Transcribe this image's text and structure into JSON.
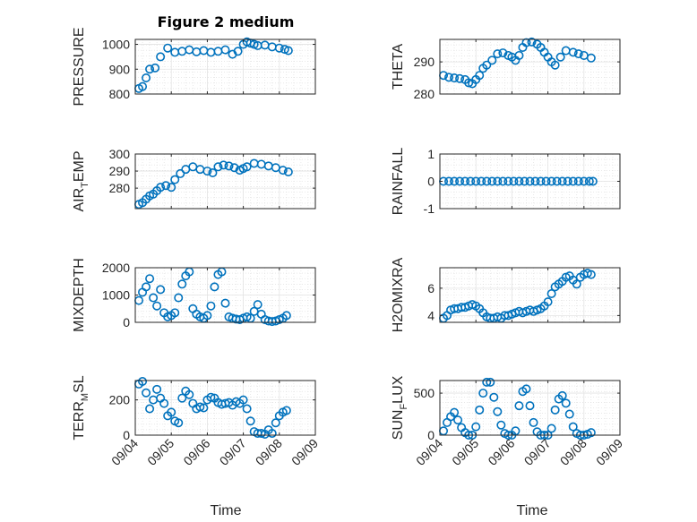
{
  "figure": {
    "title": "Figure 2 medium",
    "marker_color": "#0072BD",
    "axis_color": "#262626",
    "grid_color": "#dcdcdc",
    "x_tick_labels": [
      "09/04",
      "09/05",
      "09/06",
      "09/07",
      "09/08",
      "09/09"
    ],
    "x_label": "Time"
  },
  "chart_data": [
    {
      "type": "scatter",
      "ylabel": "PRESSURE",
      "ylabel_main": "PRESSURE",
      "ylabel_sub": "",
      "ylabel_rest": "",
      "xlim": [
        0,
        5
      ],
      "ylim": [
        800,
        1020
      ],
      "yticks": [
        800,
        900,
        1000
      ],
      "ytick_labels": [
        "800",
        "900",
        "1000"
      ],
      "x": [
        0.1,
        0.2,
        0.3,
        0.4,
        0.55,
        0.7,
        0.9,
        1.1,
        1.3,
        1.5,
        1.7,
        1.9,
        2.1,
        2.3,
        2.5,
        2.7,
        2.85,
        3.0,
        3.1,
        3.2,
        3.3,
        3.4,
        3.6,
        3.8,
        4.0,
        4.15,
        4.25
      ],
      "y": [
        822,
        830,
        865,
        900,
        905,
        950,
        985,
        968,
        972,
        978,
        970,
        975,
        968,
        972,
        978,
        960,
        972,
        1000,
        1010,
        1005,
        1000,
        995,
        997,
        990,
        985,
        980,
        975
      ]
    },
    {
      "type": "scatter",
      "ylabel": "THETA",
      "ylabel_main": "THETA",
      "ylabel_sub": "",
      "ylabel_rest": "",
      "xlim": [
        0,
        5
      ],
      "ylim": [
        280,
        297
      ],
      "yticks": [
        280,
        290
      ],
      "ytick_labels": [
        "280",
        "290"
      ],
      "x": [
        0.1,
        0.25,
        0.4,
        0.55,
        0.7,
        0.8,
        0.9,
        1.0,
        1.1,
        1.2,
        1.3,
        1.45,
        1.6,
        1.75,
        1.9,
        2.0,
        2.1,
        2.2,
        2.3,
        2.4,
        2.55,
        2.7,
        2.8,
        2.9,
        3.0,
        3.1,
        3.2,
        3.35,
        3.5,
        3.7,
        3.85,
        4.0,
        4.2
      ],
      "y": [
        285.8,
        285.2,
        285.0,
        284.8,
        284.5,
        283.5,
        283.2,
        284.5,
        285.8,
        288.0,
        289.0,
        290.5,
        292.5,
        292.8,
        292.0,
        291.5,
        290.5,
        292.0,
        294.5,
        296.0,
        296.2,
        295.5,
        294.5,
        293.0,
        291.5,
        290.0,
        289.0,
        291.5,
        293.5,
        293.0,
        292.5,
        292.0,
        291.2
      ]
    },
    {
      "type": "scatter",
      "ylabel": "AIR_TEMP",
      "ylabel_main": "AIR",
      "ylabel_sub": "T",
      "ylabel_rest": "EMP",
      "xlim": [
        0,
        5
      ],
      "ylim": [
        268,
        300
      ],
      "yticks": [
        280,
        290,
        300
      ],
      "ytick_labels": [
        "280",
        "290",
        "300"
      ],
      "x": [
        0.1,
        0.2,
        0.3,
        0.4,
        0.5,
        0.6,
        0.7,
        0.85,
        1.0,
        1.1,
        1.25,
        1.4,
        1.6,
        1.8,
        2.0,
        2.15,
        2.3,
        2.45,
        2.6,
        2.75,
        2.9,
        3.0,
        3.1,
        3.3,
        3.5,
        3.7,
        3.9,
        4.1,
        4.25
      ],
      "y": [
        270.5,
        271.5,
        273.5,
        275.5,
        276.5,
        278.5,
        280.5,
        281.5,
        280.5,
        285.0,
        288.5,
        291.0,
        292.5,
        291.0,
        290.0,
        289.0,
        292.5,
        293.5,
        293.0,
        292.0,
        290.5,
        291.5,
        292.5,
        294.5,
        294.0,
        293.0,
        292.0,
        290.5,
        289.5
      ]
    },
    {
      "type": "scatter",
      "ylabel": "RAINFALL",
      "ylabel_main": "RAINFALL",
      "ylabel_sub": "",
      "ylabel_rest": "",
      "xlim": [
        0,
        5
      ],
      "ylim": [
        -1,
        1
      ],
      "yticks": [
        -1,
        0,
        1
      ],
      "ytick_labels": [
        "-1",
        "0",
        "1"
      ],
      "x": [
        0.1,
        0.25,
        0.4,
        0.55,
        0.7,
        0.85,
        1.0,
        1.15,
        1.3,
        1.45,
        1.6,
        1.75,
        1.9,
        2.05,
        2.2,
        2.35,
        2.5,
        2.65,
        2.8,
        2.95,
        3.1,
        3.25,
        3.4,
        3.55,
        3.7,
        3.85,
        4.0,
        4.15,
        4.25
      ],
      "y": [
        0,
        0,
        0,
        0,
        0,
        0,
        0,
        0,
        0,
        0,
        0,
        0,
        0,
        0,
        0,
        0,
        0,
        0,
        0,
        0,
        0,
        0,
        0,
        0,
        0,
        0,
        0,
        0,
        0
      ]
    },
    {
      "type": "scatter",
      "ylabel": "MIXDEPTH",
      "ylabel_main": "MIXDEPTH",
      "ylabel_sub": "",
      "ylabel_rest": "",
      "xlim": [
        0,
        5
      ],
      "ylim": [
        0,
        2000
      ],
      "yticks": [
        0,
        1000,
        2000
      ],
      "ytick_labels": [
        "0",
        "1000",
        "2000"
      ],
      "x": [
        0.1,
        0.2,
        0.3,
        0.4,
        0.5,
        0.6,
        0.7,
        0.8,
        0.9,
        1.0,
        1.1,
        1.2,
        1.3,
        1.4,
        1.5,
        1.6,
        1.7,
        1.8,
        1.9,
        2.0,
        2.1,
        2.2,
        2.3,
        2.4,
        2.5,
        2.6,
        2.7,
        2.8,
        2.9,
        3.0,
        3.1,
        3.2,
        3.3,
        3.4,
        3.5,
        3.6,
        3.7,
        3.8,
        3.9,
        4.0,
        4.1,
        4.2
      ],
      "y": [
        800,
        1100,
        1300,
        1600,
        900,
        600,
        1200,
        350,
        200,
        250,
        350,
        900,
        1400,
        1700,
        1850,
        500,
        300,
        200,
        150,
        250,
        600,
        1300,
        1750,
        1850,
        700,
        200,
        150,
        120,
        100,
        150,
        200,
        150,
        400,
        650,
        300,
        100,
        50,
        30,
        50,
        100,
        150,
        250
      ]
    },
    {
      "type": "scatter",
      "ylabel": "H2OMIXRA",
      "ylabel_main": "H2OMIXRA",
      "ylabel_sub": "",
      "ylabel_rest": "",
      "xlim": [
        0,
        5
      ],
      "ylim": [
        3.5,
        7.5
      ],
      "yticks": [
        4,
        6
      ],
      "ytick_labels": [
        "4",
        "6"
      ],
      "x": [
        0.1,
        0.2,
        0.3,
        0.4,
        0.5,
        0.6,
        0.7,
        0.8,
        0.9,
        1.0,
        1.1,
        1.2,
        1.3,
        1.4,
        1.5,
        1.6,
        1.7,
        1.8,
        1.9,
        2.0,
        2.1,
        2.2,
        2.3,
        2.4,
        2.5,
        2.6,
        2.7,
        2.8,
        2.9,
        3.0,
        3.1,
        3.2,
        3.3,
        3.4,
        3.5,
        3.6,
        3.7,
        3.8,
        3.9,
        4.0,
        4.1,
        4.2
      ],
      "y": [
        3.8,
        4.0,
        4.4,
        4.5,
        4.5,
        4.6,
        4.6,
        4.7,
        4.8,
        4.7,
        4.5,
        4.2,
        3.9,
        3.8,
        3.8,
        3.9,
        3.8,
        4.0,
        4.0,
        4.1,
        4.2,
        4.3,
        4.2,
        4.3,
        4.4,
        4.3,
        4.4,
        4.5,
        4.7,
        5.0,
        5.6,
        6.1,
        6.3,
        6.5,
        6.8,
        6.9,
        6.6,
        6.3,
        6.8,
        7.0,
        7.1,
        7.0
      ]
    },
    {
      "type": "scatter",
      "ylabel": "TERR_MSL",
      "ylabel_main": "TERR",
      "ylabel_sub": "M",
      "ylabel_rest": "SL",
      "xlim": [
        0,
        5
      ],
      "ylim": [
        0,
        310
      ],
      "yticks": [
        0,
        200
      ],
      "ytick_labels": [
        "0",
        "200"
      ],
      "x": [
        0.1,
        0.2,
        0.3,
        0.4,
        0.5,
        0.6,
        0.7,
        0.8,
        0.9,
        1.0,
        1.1,
        1.2,
        1.3,
        1.4,
        1.5,
        1.6,
        1.7,
        1.8,
        1.9,
        2.0,
        2.1,
        2.2,
        2.3,
        2.4,
        2.5,
        2.6,
        2.7,
        2.8,
        2.9,
        3.0,
        3.1,
        3.2,
        3.3,
        3.4,
        3.5,
        3.6,
        3.7,
        3.8,
        3.9,
        4.0,
        4.1,
        4.2
      ],
      "y": [
        290,
        305,
        240,
        150,
        200,
        260,
        210,
        180,
        110,
        130,
        80,
        70,
        210,
        250,
        230,
        180,
        150,
        160,
        155,
        200,
        215,
        210,
        185,
        175,
        180,
        185,
        170,
        190,
        180,
        200,
        150,
        80,
        20,
        10,
        10,
        5,
        30,
        10,
        70,
        110,
        130,
        140
      ]
    },
    {
      "type": "scatter",
      "ylabel": "SUN_FLUX",
      "ylabel_main": "SUN",
      "ylabel_sub": "F",
      "ylabel_rest": "LUX",
      "xlim": [
        0,
        5
      ],
      "ylim": [
        0,
        650
      ],
      "yticks": [
        0,
        500
      ],
      "ytick_labels": [
        "0",
        "500"
      ],
      "x": [
        0.1,
        0.2,
        0.3,
        0.4,
        0.5,
        0.6,
        0.7,
        0.8,
        0.9,
        1.0,
        1.1,
        1.2,
        1.3,
        1.4,
        1.5,
        1.6,
        1.7,
        1.8,
        1.9,
        2.0,
        2.1,
        2.2,
        2.3,
        2.4,
        2.5,
        2.6,
        2.7,
        2.8,
        2.9,
        3.0,
        3.1,
        3.2,
        3.3,
        3.4,
        3.5,
        3.6,
        3.7,
        3.8,
        3.9,
        4.0,
        4.1,
        4.2
      ],
      "y": [
        50,
        150,
        220,
        270,
        180,
        90,
        30,
        0,
        0,
        100,
        300,
        500,
        630,
        630,
        450,
        280,
        120,
        20,
        0,
        0,
        50,
        350,
        520,
        550,
        350,
        150,
        40,
        0,
        0,
        0,
        80,
        300,
        430,
        470,
        380,
        250,
        100,
        20,
        0,
        0,
        10,
        30
      ]
    }
  ]
}
